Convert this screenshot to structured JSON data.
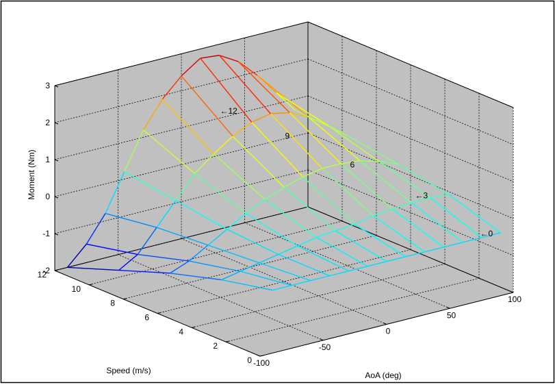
{
  "colors": {
    "figure_background": "#ffffff",
    "axes_background": "#c0c0c0",
    "box_line": "#000000",
    "grid_line": "#000000"
  },
  "chart_data": {
    "type": "surface",
    "xlabel": "AoA (deg)",
    "ylabel": "Speed (m/s)",
    "zlabel": "Moment (Nm)",
    "xlim": [
      -100,
      100
    ],
    "ylim": [
      0,
      12
    ],
    "zlim": [
      -2,
      3
    ],
    "x_ticks": [
      -100,
      -50,
      0,
      50,
      100
    ],
    "y_ticks": [
      0,
      2,
      4,
      6,
      8,
      10,
      12
    ],
    "z_ticks": [
      -2,
      -1,
      0,
      1,
      2,
      3
    ],
    "grid": true,
    "aoa": [
      -90,
      -75,
      -60,
      -45,
      -30,
      -15,
      0,
      15,
      30,
      45,
      60,
      75,
      90
    ],
    "speed": [
      0,
      3,
      6,
      9,
      12
    ],
    "moment": [
      [
        -0.3,
        -0.3,
        -0.3,
        -0.3,
        -0.3,
        -0.3,
        -0.3,
        -0.3,
        -0.3,
        -0.3,
        -0.3,
        -0.3,
        -0.3
      ],
      [
        -0.6,
        -0.5,
        -0.4,
        -0.3,
        -0.2,
        -0.1,
        -0.05,
        0.0,
        0.1,
        0.15,
        0.2,
        0.2,
        0.15
      ],
      [
        -1.0,
        -0.8,
        -0.5,
        -0.2,
        0.1,
        0.35,
        0.55,
        0.7,
        0.8,
        0.8,
        0.75,
        0.6,
        0.4
      ],
      [
        -1.5,
        -1.2,
        -0.6,
        0.0,
        0.6,
        1.0,
        1.35,
        1.6,
        1.7,
        1.6,
        1.35,
        1.0,
        0.6
      ],
      [
        -2.0,
        -1.5,
        -0.8,
        0.2,
        1.2,
        1.9,
        2.4,
        2.75,
        2.7,
        2.4,
        1.9,
        1.3,
        0.7
      ]
    ],
    "annotations": [
      "←0",
      "←3",
      "6",
      "9",
      "←12"
    ]
  }
}
